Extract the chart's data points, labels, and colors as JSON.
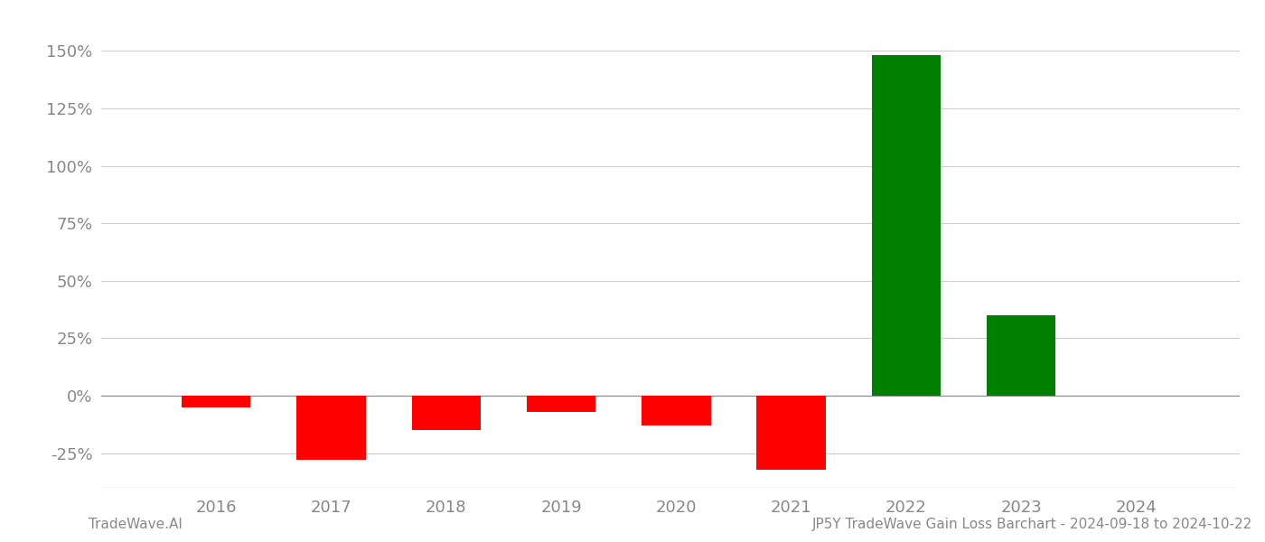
{
  "years": [
    2016,
    2017,
    2018,
    2019,
    2020,
    2021,
    2022,
    2023,
    2024
  ],
  "values": [
    -5.0,
    -28.0,
    -15.0,
    -7.0,
    -13.0,
    -32.0,
    148.0,
    35.0,
    0.0
  ],
  "colors": [
    "#ff0000",
    "#ff0000",
    "#ff0000",
    "#ff0000",
    "#ff0000",
    "#ff0000",
    "#008000",
    "#008000",
    "#ffffff"
  ],
  "ylim": [
    -40,
    165
  ],
  "yticks": [
    -25,
    0,
    25,
    50,
    75,
    100,
    125,
    150
  ],
  "bar_width": 0.6,
  "background_color": "#ffffff",
  "grid_color": "#cccccc",
  "axis_color": "#888888",
  "tick_color": "#888888",
  "footer_left": "TradeWave.AI",
  "footer_right": "JP5Y TradeWave Gain Loss Barchart - 2024-09-18 to 2024-10-22",
  "footer_fontsize": 11,
  "tick_fontsize": 13,
  "xlim": [
    2015.0,
    2024.9
  ]
}
